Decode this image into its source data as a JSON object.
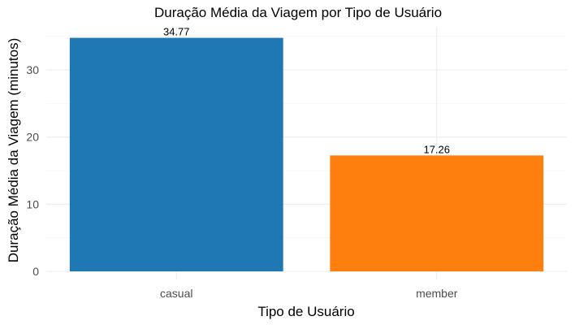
{
  "chart_data": {
    "type": "bar",
    "title": "Duração Média da Viagem por Tipo de Usuário",
    "xlabel": "Tipo de Usuário",
    "ylabel": "Duração Média da Viagem (minutos)",
    "categories": [
      "casual",
      "member"
    ],
    "values": [
      34.77,
      17.26
    ],
    "value_labels": [
      "34.77",
      "17.26"
    ],
    "colors": [
      "#1f77b4",
      "#ff7f0e"
    ],
    "ylim": [
      0,
      36.5
    ],
    "yticks": [
      0,
      10,
      20,
      30
    ],
    "ytick_labels": [
      "0",
      "10",
      "20",
      "30"
    ],
    "grid": true,
    "legend": "none"
  }
}
